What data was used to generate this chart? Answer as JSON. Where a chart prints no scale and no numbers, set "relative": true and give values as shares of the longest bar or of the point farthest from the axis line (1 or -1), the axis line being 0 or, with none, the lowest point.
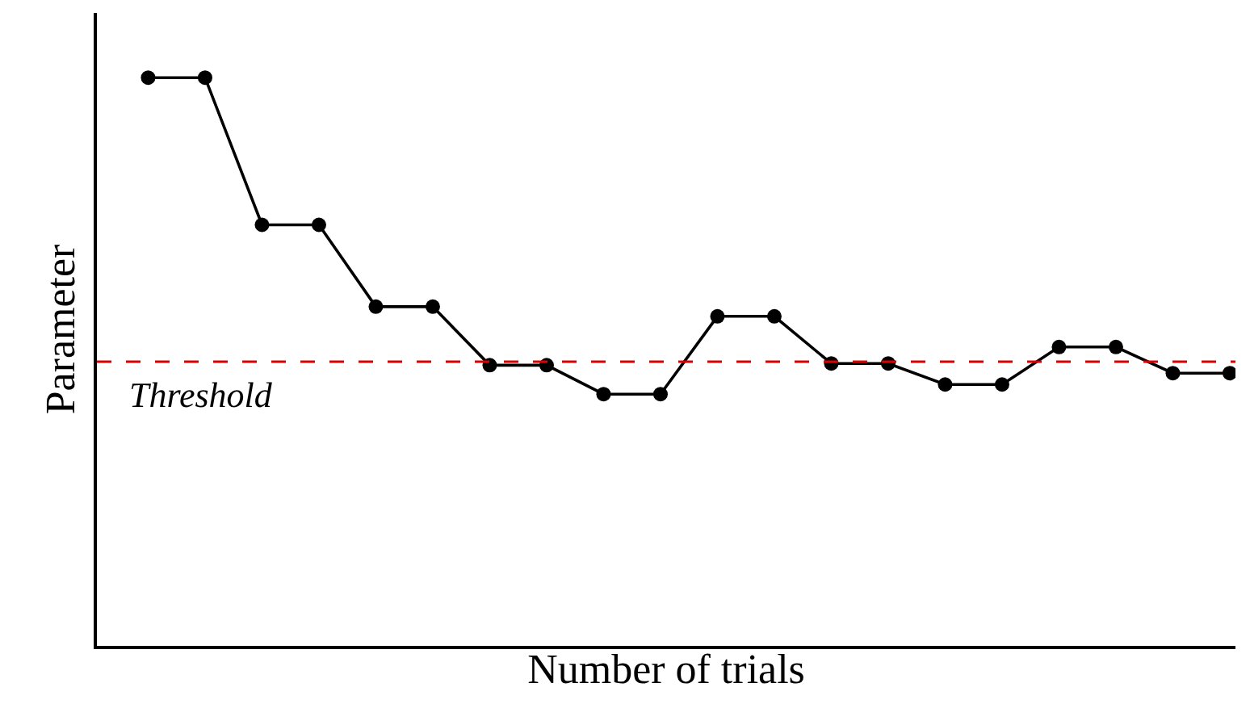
{
  "chart_data": {
    "type": "line",
    "relative": true,
    "xlabel": "Number of trials",
    "ylabel": "Parameter",
    "categories": [
      null,
      null,
      null,
      null,
      null,
      null,
      null,
      null,
      null,
      null,
      null,
      null,
      null,
      null,
      null,
      null,
      null,
      null,
      null,
      null
    ],
    "tick_labels": false,
    "marker": "circle",
    "line_style": "solid",
    "legend": false,
    "series": [
      {
        "color": "#000000",
        "values": [
          1.0,
          1.0,
          0.741,
          0.741,
          0.597,
          0.597,
          0.494,
          0.494,
          0.443,
          0.443,
          0.58,
          0.58,
          0.497,
          0.497,
          0.46,
          0.46,
          0.526,
          0.526,
          0.48,
          0.48
        ]
      }
    ],
    "ref_lines": [
      {
        "axis": "y",
        "value": 0.5,
        "label": "Threshold",
        "color": "#dd0000",
        "line_style": "dashed"
      }
    ]
  }
}
